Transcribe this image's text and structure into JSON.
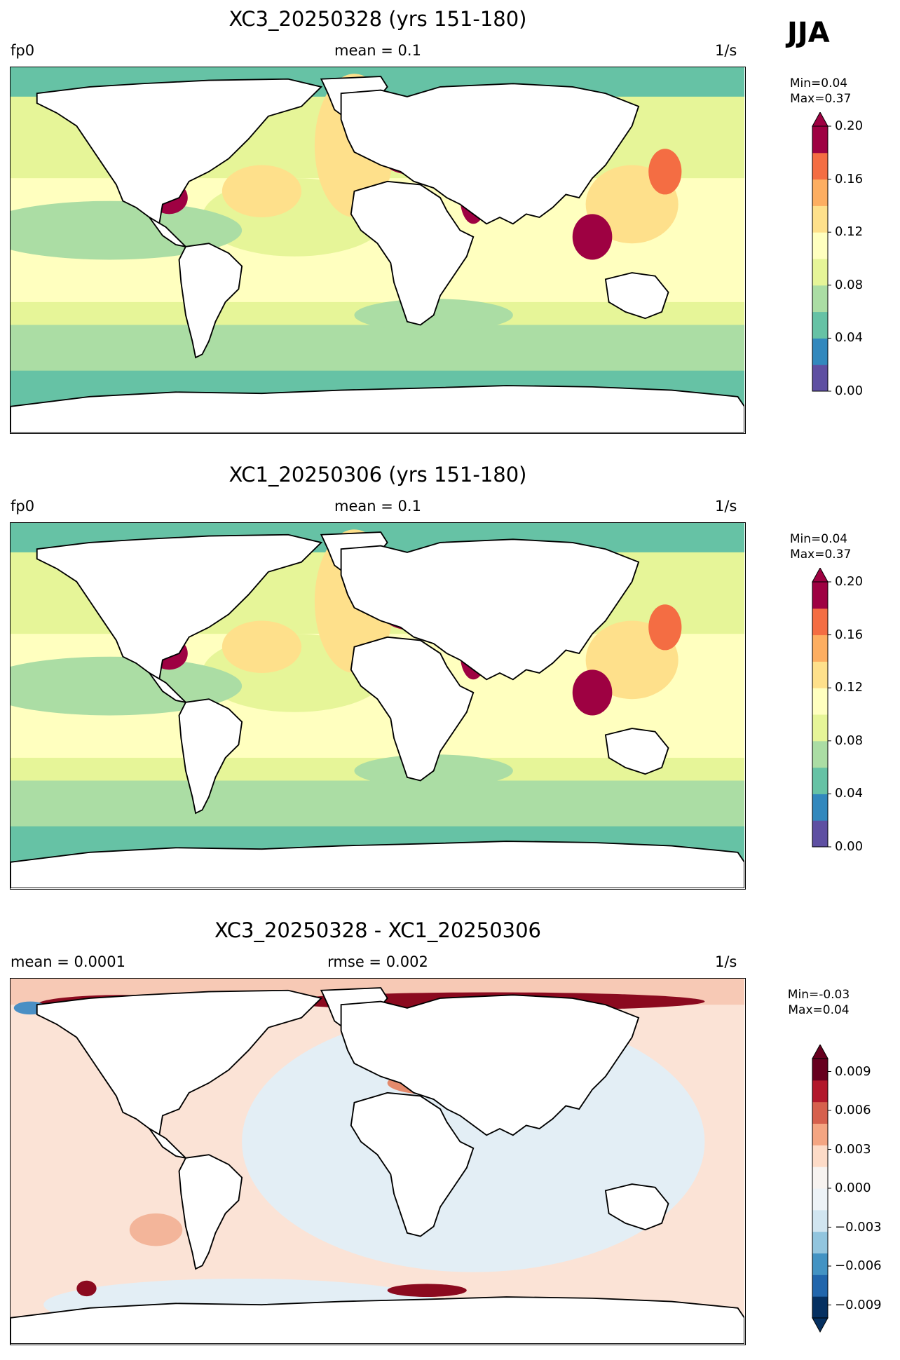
{
  "season": "JJA",
  "chart_data": [
    {
      "type": "heatmap",
      "title": "XC3_20250328 (yrs 151-180)",
      "left_label": "fp0",
      "center_label": "mean = 0.1",
      "units": "1/s",
      "minmax": "Min=0.04\n Max=0.37",
      "colorbar": {
        "ticks": [
          "0.00",
          "0.04",
          "0.08",
          "0.12",
          "0.16",
          "0.20"
        ],
        "range": [
          0.0,
          0.2
        ],
        "extend": "max",
        "colors": [
          "#5e4fa2",
          "#3288bd",
          "#66c2a5",
          "#abdda4",
          "#e6f598",
          "#ffffbf",
          "#fee08b",
          "#fdae61",
          "#f46d43",
          "#9e0142"
        ]
      },
      "colors": {
        "background": "#e6f598",
        "southern_ocean": "#abdda4",
        "polar": "#66c2a5",
        "tropics": "#ffffbf",
        "shelf": "#fee08b",
        "hot": "#9e0142",
        "warm": "#f46d43"
      }
    },
    {
      "type": "heatmap",
      "title": "XC1_20250306 (yrs 151-180)",
      "left_label": "fp0",
      "center_label": "mean = 0.1",
      "units": "1/s",
      "minmax": "Min=0.04\n Max=0.37",
      "colorbar": {
        "ticks": [
          "0.00",
          "0.04",
          "0.08",
          "0.12",
          "0.16",
          "0.20"
        ],
        "range": [
          0.0,
          0.2
        ],
        "extend": "max",
        "colors": [
          "#5e4fa2",
          "#3288bd",
          "#66c2a5",
          "#abdda4",
          "#e6f598",
          "#ffffbf",
          "#fee08b",
          "#fdae61",
          "#f46d43",
          "#9e0142"
        ]
      },
      "colors": {
        "background": "#e6f598",
        "southern_ocean": "#abdda4",
        "polar": "#66c2a5",
        "tropics": "#ffffbf",
        "shelf": "#fee08b",
        "hot": "#9e0142",
        "warm": "#f46d43"
      }
    },
    {
      "type": "heatmap",
      "title": "XC3_20250328 - XC1_20250306",
      "left_label": "mean = 0.0001",
      "center_label": "rmse = 0.002",
      "units": "1/s",
      "minmax": "Min=-0.03\nMax=0.04",
      "colorbar": {
        "ticks": [
          "−0.009",
          "−0.006",
          "−0.003",
          "0.000",
          "0.003",
          "0.006",
          "0.009"
        ],
        "range": [
          -0.01,
          0.01
        ],
        "extend": "both",
        "colors": [
          "#053061",
          "#2166ac",
          "#4393c3",
          "#92c5de",
          "#d1e5f0",
          "#edf3f7",
          "#f7f3f0",
          "#fddbc7",
          "#f4a582",
          "#d6604d",
          "#b2182b",
          "#67001f"
        ]
      },
      "colors": {
        "background": "#fbe3d6",
        "cool": "#e3eef5",
        "hot": "#8b0a1f",
        "warm": "#e48a6c",
        "blue": "#4a8fc4"
      }
    }
  ]
}
